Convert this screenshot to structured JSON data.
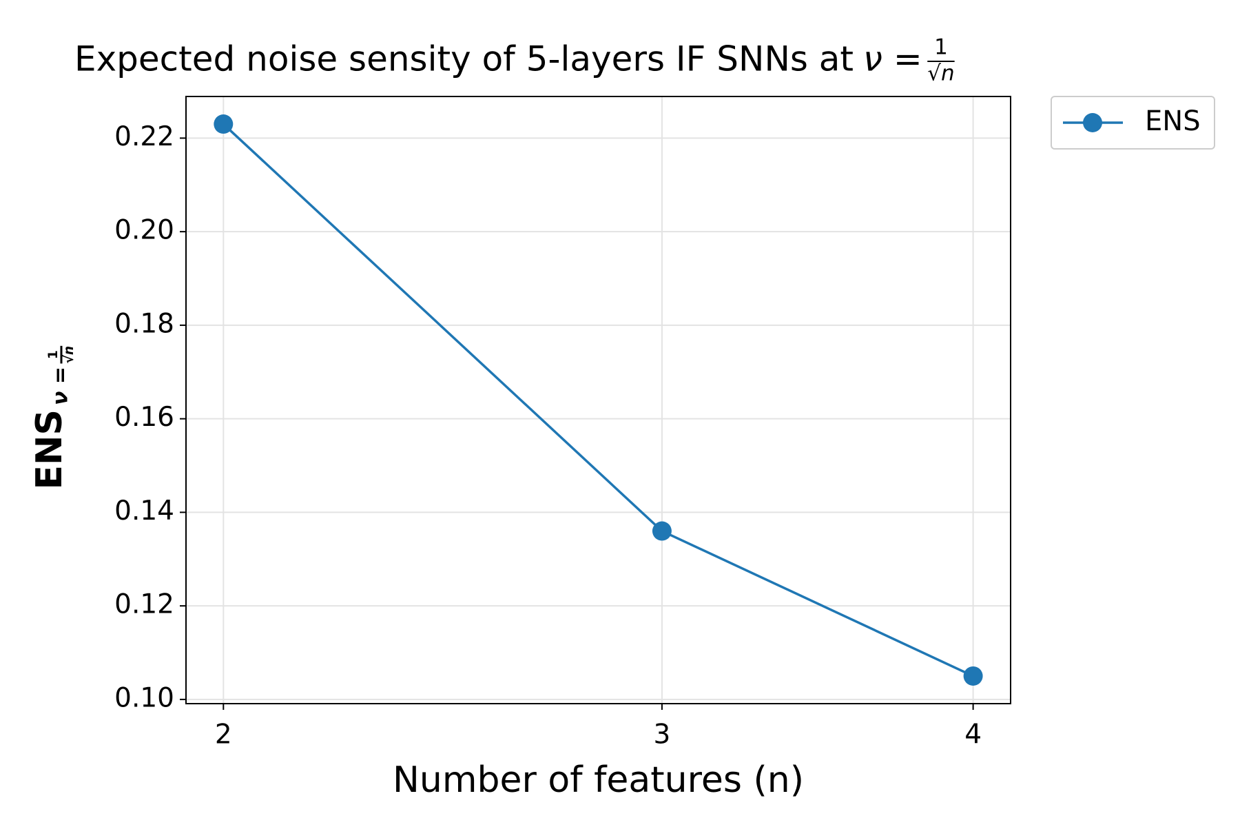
{
  "chart_data": {
    "type": "line",
    "title": "Expected noise sensity of 5-layers IF SNNs at",
    "title_math": {
      "lhs": "ν =",
      "numerator": "1",
      "denominator": "√n"
    },
    "xlabel": "Number of features (n)",
    "ylabel": "ENS",
    "ylabel_math": {
      "lhs": "ν =",
      "numerator": "1",
      "denominator": "√n"
    },
    "x": [
      2,
      3,
      4
    ],
    "series": [
      {
        "name": "ENS",
        "color": "#1f77b4",
        "values": [
          0.223,
          0.136,
          0.105
        ]
      }
    ],
    "xscale": "log",
    "xlim": [
      1.932,
      4.141
    ],
    "xticks": [
      2,
      3,
      4
    ],
    "ylim": [
      0.0991,
      0.2289
    ],
    "yticks": [
      {
        "value": 0.1,
        "label": "0.10"
      },
      0.12,
      0.14,
      0.16,
      0.18,
      {
        "value": 0.2,
        "label": "0.20"
      },
      0.22
    ],
    "grid": true,
    "legend": "outside-upper-right"
  }
}
